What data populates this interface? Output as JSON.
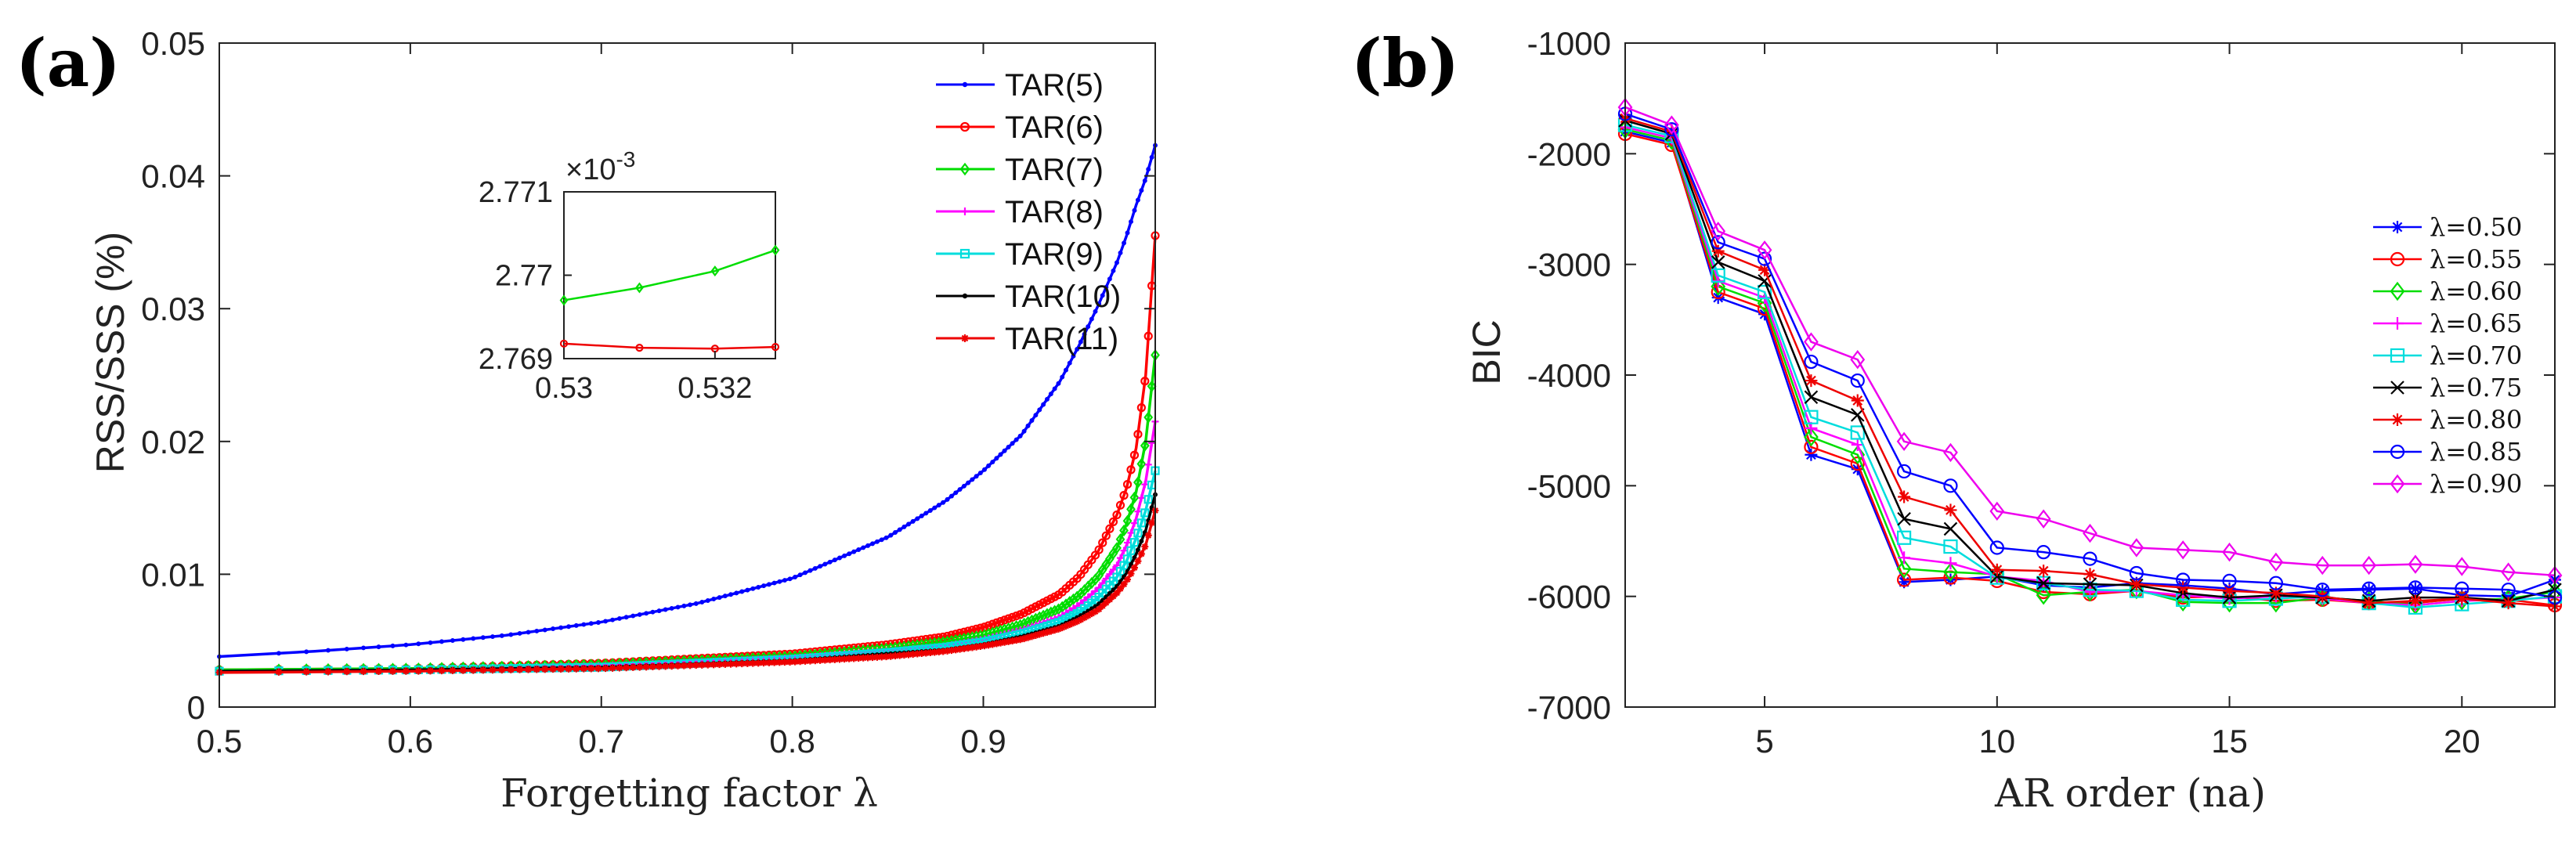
{
  "chart_data": [
    {
      "type": "line",
      "panel_label": "(a)",
      "title": "",
      "xlabel": "Forgetting factor λ",
      "ylabel": "RSS/SSS (%)",
      "xlim": [
        0.5,
        0.99
      ],
      "ylim": [
        0,
        0.05
      ],
      "xticks": [
        0.5,
        0.6,
        0.7,
        0.8,
        0.9
      ],
      "xtick_labels": [
        "0.5",
        "0.6",
        "0.7",
        "0.8",
        "0.9"
      ],
      "yticks": [
        0,
        0.01,
        0.02,
        0.03,
        0.04,
        0.05
      ],
      "ytick_labels": [
        "0",
        "0.01",
        "0.02",
        "0.03",
        "0.04",
        "0.05"
      ],
      "legend_position": "top-right",
      "series": [
        {
          "name": "TAR(5)",
          "color": "#0000ff",
          "marker": "dot",
          "x": [
            0.5,
            0.55,
            0.6,
            0.65,
            0.7,
            0.75,
            0.8,
            0.85,
            0.88,
            0.9,
            0.92,
            0.94,
            0.95,
            0.96,
            0.97,
            0.975,
            0.98,
            0.985,
            0.99
          ],
          "y": [
            0.0038,
            0.0042,
            0.0047,
            0.0054,
            0.0064,
            0.0078,
            0.0097,
            0.0128,
            0.0155,
            0.0178,
            0.0205,
            0.0245,
            0.0272,
            0.0302,
            0.0335,
            0.0355,
            0.0378,
            0.0398,
            0.0423
          ]
        },
        {
          "name": "TAR(6)",
          "color": "#ff0000",
          "marker": "circle",
          "x": [
            0.5,
            0.6,
            0.7,
            0.8,
            0.85,
            0.88,
            0.9,
            0.92,
            0.94,
            0.95,
            0.96,
            0.97,
            0.975,
            0.98,
            0.985,
            0.99
          ],
          "y": [
            0.0028,
            0.0029,
            0.0033,
            0.004,
            0.0047,
            0.0053,
            0.006,
            0.007,
            0.0085,
            0.0098,
            0.0117,
            0.0145,
            0.0165,
            0.0195,
            0.025,
            0.0355
          ]
        },
        {
          "name": "TAR(7)",
          "color": "#00dd00",
          "marker": "diamond",
          "x": [
            0.5,
            0.6,
            0.7,
            0.8,
            0.85,
            0.88,
            0.9,
            0.92,
            0.94,
            0.95,
            0.96,
            0.97,
            0.975,
            0.98,
            0.985,
            0.99
          ],
          "y": [
            0.0028,
            0.0029,
            0.0032,
            0.0038,
            0.0044,
            0.0049,
            0.0054,
            0.0062,
            0.0074,
            0.0084,
            0.0098,
            0.012,
            0.0138,
            0.0162,
            0.02,
            0.0265
          ]
        },
        {
          "name": "TAR(8)",
          "color": "#ff00ff",
          "marker": "plus",
          "x": [
            0.5,
            0.6,
            0.7,
            0.8,
            0.85,
            0.88,
            0.9,
            0.92,
            0.94,
            0.95,
            0.96,
            0.97,
            0.975,
            0.98,
            0.985,
            0.99
          ],
          "y": [
            0.0027,
            0.0028,
            0.0031,
            0.0037,
            0.0042,
            0.0046,
            0.0051,
            0.0058,
            0.0068,
            0.0077,
            0.0089,
            0.0107,
            0.0122,
            0.0142,
            0.017,
            0.0215
          ]
        },
        {
          "name": "TAR(9)",
          "color": "#00dddd",
          "marker": "square",
          "x": [
            0.5,
            0.6,
            0.7,
            0.8,
            0.85,
            0.88,
            0.9,
            0.92,
            0.94,
            0.95,
            0.96,
            0.97,
            0.975,
            0.98,
            0.985,
            0.99
          ],
          "y": [
            0.0027,
            0.0028,
            0.003,
            0.0036,
            0.0041,
            0.0045,
            0.0049,
            0.0055,
            0.0064,
            0.0071,
            0.0082,
            0.0098,
            0.011,
            0.0127,
            0.0148,
            0.0178
          ]
        },
        {
          "name": "TAR(10)",
          "color": "#000000",
          "marker": "dot",
          "x": [
            0.5,
            0.6,
            0.7,
            0.8,
            0.85,
            0.88,
            0.9,
            0.92,
            0.94,
            0.95,
            0.96,
            0.97,
            0.975,
            0.98,
            0.985,
            0.99
          ],
          "y": [
            0.0027,
            0.0028,
            0.003,
            0.0035,
            0.004,
            0.0043,
            0.0047,
            0.0053,
            0.0061,
            0.0068,
            0.0077,
            0.0091,
            0.0101,
            0.0115,
            0.0133,
            0.016
          ]
        },
        {
          "name": "TAR(11)",
          "color": "#ee0000",
          "marker": "star",
          "x": [
            0.5,
            0.6,
            0.7,
            0.8,
            0.85,
            0.88,
            0.9,
            0.92,
            0.94,
            0.95,
            0.96,
            0.97,
            0.975,
            0.98,
            0.985,
            0.99
          ],
          "y": [
            0.0026,
            0.0027,
            0.0029,
            0.0034,
            0.0038,
            0.0042,
            0.0046,
            0.0051,
            0.0059,
            0.0065,
            0.0073,
            0.0086,
            0.0095,
            0.0107,
            0.0122,
            0.0148
          ]
        }
      ],
      "inset": {
        "xlim": [
          0.53,
          0.5328
        ],
        "ylim": [
          2.769,
          2.771
        ],
        "xticks": [
          0.53,
          0.532
        ],
        "xtick_labels": [
          "0.53",
          "0.532"
        ],
        "yticks": [
          2.769,
          2.77,
          2.771
        ],
        "ytick_labels": [
          "2.769",
          "2.77",
          "2.771"
        ],
        "exponent_label": "×10",
        "exponent_power": "-3",
        "series": [
          {
            "name": "TAR(7)",
            "color": "#00dd00",
            "marker": "diamond",
            "x": [
              0.53,
              0.531,
              0.532,
              0.5328
            ],
            "y": [
              2.7697,
              2.76985,
              2.77005,
              2.7703
            ]
          },
          {
            "name": "TAR(11)",
            "color": "#ee0000",
            "marker": "circle",
            "x": [
              0.53,
              0.531,
              0.532,
              0.5328
            ],
            "y": [
              2.76918,
              2.76913,
              2.76912,
              2.76914
            ]
          }
        ]
      }
    },
    {
      "type": "line",
      "panel_label": "(b)",
      "title": "",
      "xlabel": "AR order (na)",
      "ylabel": "BIC",
      "xlim": [
        2,
        22
      ],
      "ylim": [
        -7000,
        -1000
      ],
      "xticks": [
        5,
        10,
        15,
        20
      ],
      "xtick_labels": [
        "5",
        "10",
        "15",
        "20"
      ],
      "yticks": [
        -7000,
        -6000,
        -5000,
        -4000,
        -3000,
        -2000,
        -1000
      ],
      "ytick_labels": [
        "-7000",
        "-6000",
        "-5000",
        "-4000",
        "-3000",
        "-2000",
        "-1000"
      ],
      "legend_position": "right",
      "x": [
        2,
        3,
        4,
        5,
        6,
        7,
        8,
        9,
        10,
        11,
        12,
        13,
        14,
        15,
        16,
        17,
        18,
        19,
        20,
        21,
        22
      ],
      "series": [
        {
          "name": "λ=0.50",
          "color": "#0000ff",
          "marker": "star",
          "values": [
            -1800,
            -1900,
            -3300,
            -3450,
            -4720,
            -4850,
            -5870,
            -5850,
            -5820,
            -5900,
            -5920,
            -5880,
            -5900,
            -5930,
            -5980,
            -5950,
            -5940,
            -5930,
            -5990,
            -6000,
            -5850
          ]
        },
        {
          "name": "λ=0.55",
          "color": "#ff0000",
          "marker": "circle",
          "values": [
            -1820,
            -1920,
            -3250,
            -3400,
            -4650,
            -4800,
            -5850,
            -5830,
            -5860,
            -5960,
            -5980,
            -5950,
            -6010,
            -6000,
            -6040,
            -6030,
            -6060,
            -6060,
            -6020,
            -6030,
            -6080
          ]
        },
        {
          "name": "λ=0.60",
          "color": "#00dd00",
          "marker": "diamond",
          "values": [
            -1780,
            -1880,
            -3200,
            -3350,
            -4560,
            -4720,
            -5750,
            -5780,
            -5800,
            -5990,
            -5960,
            -5940,
            -6050,
            -6060,
            -6060,
            -6010,
            -6040,
            -6080,
            -6040,
            -6020,
            -5960
          ]
        },
        {
          "name": "λ=0.65",
          "color": "#ff00ff",
          "marker": "plus",
          "values": [
            -1760,
            -1860,
            -3150,
            -3300,
            -4480,
            -4630,
            -5650,
            -5700,
            -5820,
            -5860,
            -5960,
            -5950,
            -5990,
            -6020,
            -6000,
            -6020,
            -6060,
            -6080,
            -6040,
            -6030,
            -6010
          ]
        },
        {
          "name": "λ=0.70",
          "color": "#00dddd",
          "marker": "square",
          "values": [
            -1740,
            -1840,
            -3100,
            -3250,
            -4380,
            -4520,
            -5470,
            -5550,
            -5830,
            -5880,
            -5940,
            -5950,
            -6030,
            -6040,
            -6020,
            -6000,
            -6060,
            -6100,
            -6070,
            -6040,
            -6000
          ]
        },
        {
          "name": "λ=0.75",
          "color": "#000000",
          "marker": "cross",
          "values": [
            -1700,
            -1820,
            -2980,
            -3150,
            -4200,
            -4360,
            -5300,
            -5390,
            -5820,
            -5880,
            -5890,
            -5900,
            -5970,
            -6010,
            -5990,
            -6010,
            -6040,
            -6010,
            -6010,
            -6040,
            -5940
          ]
        },
        {
          "name": "λ=0.80",
          "color": "#ee0000",
          "marker": "star",
          "values": [
            -1680,
            -1800,
            -2880,
            -3050,
            -4050,
            -4230,
            -5100,
            -5220,
            -5760,
            -5770,
            -5800,
            -5890,
            -5920,
            -5950,
            -5970,
            -6000,
            -6060,
            -6040,
            -6020,
            -6060,
            -6090
          ]
        },
        {
          "name": "λ=0.85",
          "color": "#0000ff",
          "marker": "circle",
          "values": [
            -1640,
            -1780,
            -2800,
            -2950,
            -3880,
            -4050,
            -4870,
            -5000,
            -5560,
            -5600,
            -5660,
            -5790,
            -5850,
            -5860,
            -5880,
            -5940,
            -5930,
            -5920,
            -5930,
            -5940,
            -6010
          ]
        },
        {
          "name": "λ=0.90",
          "color": "#ee00ee",
          "marker": "diamond",
          "values": [
            -1580,
            -1740,
            -2700,
            -2870,
            -3700,
            -3860,
            -4600,
            -4700,
            -5230,
            -5300,
            -5430,
            -5560,
            -5580,
            -5600,
            -5690,
            -5720,
            -5720,
            -5710,
            -5730,
            -5780,
            -5810
          ]
        }
      ]
    }
  ]
}
